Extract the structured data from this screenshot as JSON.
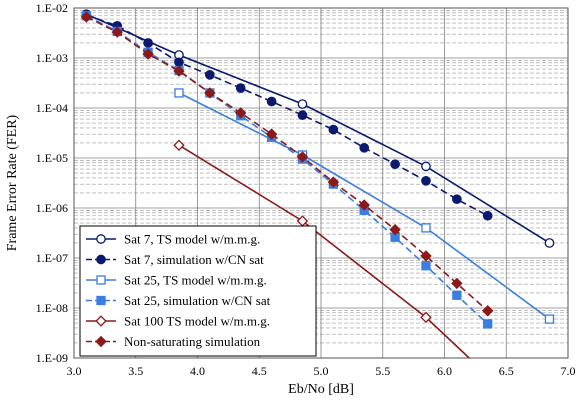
{
  "chart_data": {
    "type": "line",
    "xlabel": "Eb/No [dB]",
    "ylabel": "Frame Error Rate (FER)",
    "xlim": [
      3.0,
      7.0
    ],
    "ylim": [
      1e-09,
      0.01
    ],
    "yscale": "log",
    "x_ticks": [
      "3.0",
      "3.5",
      "4.0",
      "4.5",
      "5.0",
      "5.5",
      "6.0",
      "6.5",
      "7.0"
    ],
    "y_ticks": [
      "1.E-02",
      "1.E-03",
      "1.E-04",
      "1.E-05",
      "1.E-06",
      "1.E-07",
      "1.E-08",
      "1.E-09"
    ],
    "grid": true,
    "legend_position": "bottom-left",
    "series": [
      {
        "name": "Sat 7, TS model w/m.m.g.",
        "color": "#0a1a6e",
        "dashed": false,
        "marker": "circle-open",
        "x": [
          3.1,
          3.85,
          4.85,
          5.85,
          6.85
        ],
        "y": [
          0.0075,
          0.00115,
          0.00012,
          6.8e-06,
          2e-07
        ]
      },
      {
        "name": "Sat 7, simulation w/CN sat",
        "color": "#0a1a6e",
        "dashed": true,
        "marker": "circle-filled",
        "x": [
          3.1,
          3.35,
          3.6,
          3.85,
          4.1,
          4.35,
          4.6,
          4.85,
          5.1,
          5.35,
          5.6,
          5.85,
          6.1,
          6.35
        ],
        "y": [
          0.0072,
          0.0044,
          0.002,
          0.00082,
          0.00046,
          0.00025,
          0.000135,
          7.2e-05,
          3.7e-05,
          1.6e-05,
          7.5e-06,
          3.5e-06,
          1.5e-06,
          7e-07
        ]
      },
      {
        "name": "Sat 25, TS model w/m.m.g.",
        "color": "#3b7de0",
        "dashed": false,
        "marker": "square-open",
        "x": [
          3.85,
          4.85,
          5.85,
          6.85
        ],
        "y": [
          0.0002,
          1.15e-05,
          4e-07,
          6e-09
        ]
      },
      {
        "name": "Sat 25, simulation w/CN sat",
        "color": "#3b7de0",
        "dashed": true,
        "marker": "square-filled",
        "x": [
          3.1,
          3.35,
          3.6,
          3.85,
          4.1,
          4.35,
          4.6,
          4.85,
          5.1,
          5.35,
          5.6,
          5.85,
          6.1,
          6.35
        ],
        "y": [
          0.007,
          0.0034,
          0.0013,
          0.00056,
          0.0002,
          7e-05,
          2.6e-05,
          9.5e-06,
          3e-06,
          9e-07,
          2.6e-07,
          7e-08,
          1.8e-08,
          4.8e-09
        ]
      },
      {
        "name": "Sat 100 TS model w/m.m.g.",
        "color": "#8b1a1a",
        "dashed": false,
        "marker": "diamond-open",
        "x": [
          3.85,
          4.85,
          5.85,
          6.2
        ],
        "y": [
          1.8e-05,
          5.5e-07,
          6.5e-09,
          1e-09
        ]
      },
      {
        "name": "Non-saturating simulation",
        "color": "#8b1a1a",
        "dashed": true,
        "marker": "diamond-filled",
        "x": [
          3.1,
          3.35,
          3.6,
          3.85,
          4.1,
          4.35,
          4.6,
          4.85,
          5.1,
          5.35,
          5.6,
          5.85,
          6.1,
          6.35
        ],
        "y": [
          0.0066,
          0.0033,
          0.0012,
          0.00055,
          0.0002,
          8e-05,
          3e-05,
          1.05e-05,
          3.3e-06,
          1.15e-06,
          3.7e-07,
          1.1e-07,
          3.1e-08,
          8.8e-09
        ]
      }
    ]
  }
}
